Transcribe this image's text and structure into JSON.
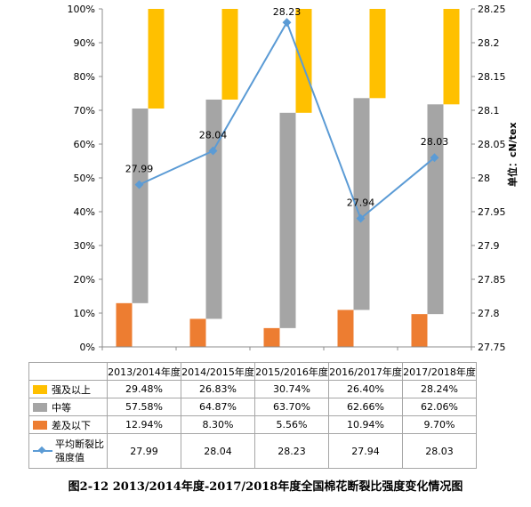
{
  "chart_data": {
    "type": "bar",
    "categories": [
      "2013/2014年度",
      "2014/2015年度",
      "2015/2016年度",
      "2016/2017年度",
      "2017/2018年度"
    ],
    "series": [
      {
        "name": "强及以上",
        "color": "#ffc000",
        "values": [
          29.48,
          26.83,
          30.74,
          26.4,
          28.24
        ],
        "labels": [
          "29.48%",
          "26.83%",
          "30.74%",
          "26.40%",
          "28.24%"
        ]
      },
      {
        "name": "中等",
        "color": "#a5a5a5",
        "values": [
          57.58,
          64.87,
          63.7,
          62.66,
          62.06
        ],
        "labels": [
          "57.58%",
          "64.87%",
          "63.70%",
          "62.66%",
          "62.06%"
        ]
      },
      {
        "name": "差及以下",
        "color": "#ed7d31",
        "values": [
          12.94,
          8.3,
          5.56,
          10.94,
          9.7
        ],
        "labels": [
          "12.94%",
          "8.30%",
          "5.56%",
          "10.94%",
          "9.70%"
        ]
      }
    ],
    "line_series": {
      "name": "平均断裂比强度值",
      "color": "#5b9bd5",
      "axis": "right",
      "values": [
        27.99,
        28.04,
        28.23,
        27.94,
        28.03
      ],
      "labels": [
        "27.99",
        "28.04",
        "28.23",
        "27.94",
        "28.03"
      ]
    },
    "left_axis": {
      "min": 0,
      "max": 100,
      "ticks": [
        "0%",
        "10%",
        "20%",
        "30%",
        "40%",
        "50%",
        "60%",
        "70%",
        "80%",
        "90%",
        "100%"
      ]
    },
    "right_axis": {
      "min": 27.75,
      "max": 28.25,
      "ticks": [
        "27.75",
        "27.8",
        "27.85",
        "27.9",
        "27.95",
        "28",
        "28.05",
        "28.1",
        "28.15",
        "28.2",
        "28.25"
      ],
      "label": "单位：cN/tex"
    },
    "grid": false,
    "legend": "data-table below plot",
    "title": "图2-12 2013/2014年度-2017/2018年度全国棉花断裂比强度变化情况图"
  }
}
